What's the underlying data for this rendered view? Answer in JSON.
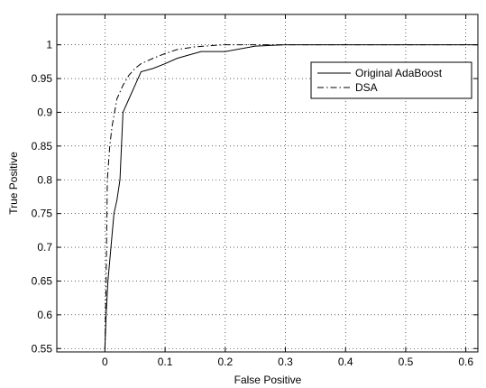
{
  "chart_data": {
    "type": "line",
    "title": "",
    "xlabel": "False Positive",
    "ylabel": "True Positive",
    "xlim": [
      -0.08,
      0.62
    ],
    "ylim": [
      0.545,
      1.045
    ],
    "xticks": [
      "0",
      "0.1",
      "0.2",
      "0.3",
      "0.4",
      "0.5",
      "0.6"
    ],
    "xtick_values": [
      0,
      0.1,
      0.2,
      0.3,
      0.4,
      0.5,
      0.6
    ],
    "yticks": [
      "0.55",
      "0.6",
      "0.65",
      "0.7",
      "0.75",
      "0.8",
      "0.85",
      "0.9",
      "0.95",
      "1"
    ],
    "ytick_values": [
      0.55,
      0.6,
      0.65,
      0.7,
      0.75,
      0.8,
      0.85,
      0.9,
      0.95,
      1.0
    ],
    "grid": true,
    "legend_position": "top-right",
    "series": [
      {
        "name": "Original AdaBoost",
        "line_style": "solid",
        "color": "#000000",
        "x": [
          0,
          0.002,
          0.005,
          0.01,
          0.015,
          0.02,
          0.025,
          0.03,
          0.04,
          0.05,
          0.06,
          0.08,
          0.1,
          0.12,
          0.14,
          0.16,
          0.2,
          0.25,
          0.3,
          0.35,
          0.4,
          0.5,
          0.62
        ],
        "y": [
          0.55,
          0.6,
          0.65,
          0.7,
          0.75,
          0.77,
          0.8,
          0.9,
          0.92,
          0.94,
          0.96,
          0.965,
          0.972,
          0.98,
          0.985,
          0.99,
          0.99,
          0.998,
          1.0,
          1.0,
          1.0,
          1.0,
          1.0
        ]
      },
      {
        "name": "DSA",
        "line_style": "dash-dot",
        "color": "#000000",
        "x": [
          0,
          0.002,
          0.004,
          0.008,
          0.012,
          0.02,
          0.03,
          0.04,
          0.05,
          0.06,
          0.08,
          0.1,
          0.12,
          0.15,
          0.18,
          0.2,
          0.25,
          0.3,
          0.4,
          0.5,
          0.62
        ],
        "y": [
          0.55,
          0.65,
          0.8,
          0.85,
          0.88,
          0.92,
          0.94,
          0.955,
          0.965,
          0.972,
          0.98,
          0.987,
          0.993,
          0.997,
          0.999,
          1.0,
          1.0,
          1.0,
          1.0,
          1.0,
          1.0
        ]
      }
    ]
  }
}
